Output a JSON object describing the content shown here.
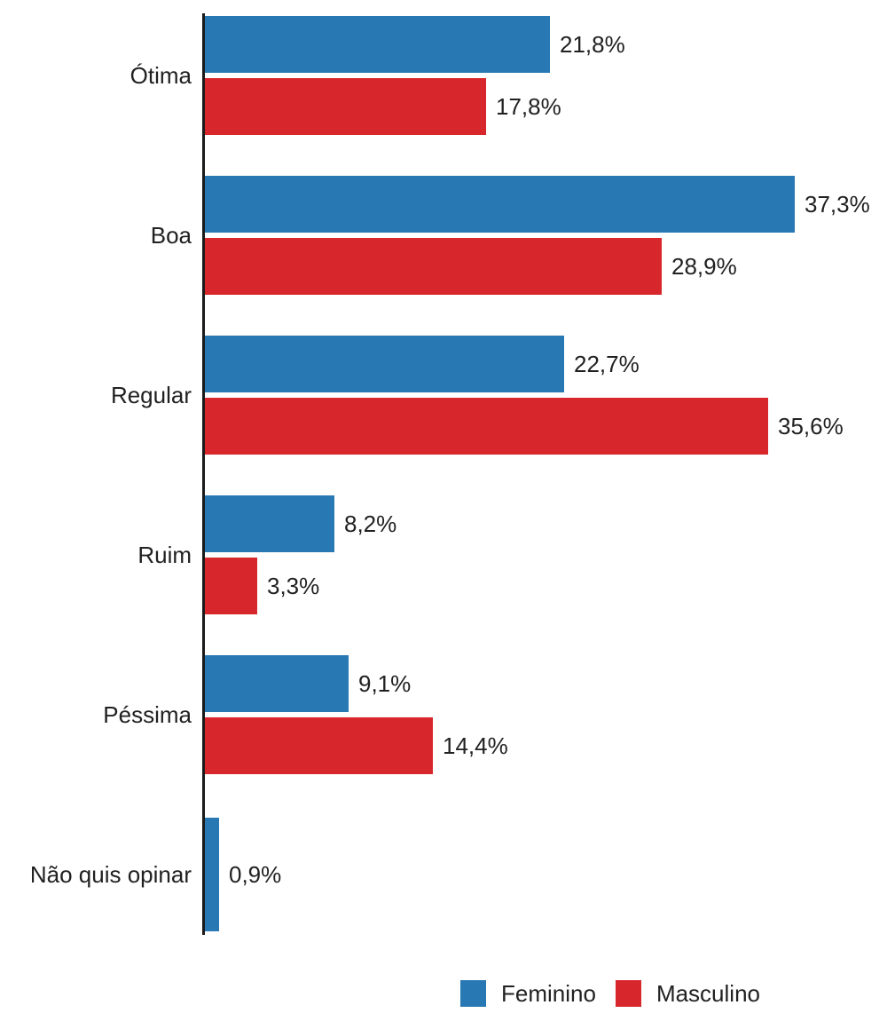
{
  "chart_data": {
    "type": "bar",
    "orientation": "horizontal",
    "categories": [
      "Ótima",
      "Boa",
      "Regular",
      "Ruim",
      "Péssima",
      "Não quis opinar"
    ],
    "series": [
      {
        "name": "Feminino",
        "color": "#2878b4",
        "values": [
          21.8,
          37.3,
          22.7,
          8.2,
          9.1,
          0.9
        ],
        "labels": [
          "21,8%",
          "37,3%",
          "22,7%",
          "8,2%",
          "9,1%",
          "0,9%"
        ]
      },
      {
        "name": "Masculino",
        "color": "#d7262c",
        "values": [
          17.8,
          28.9,
          35.6,
          3.3,
          14.4,
          null
        ],
        "labels": [
          "17,8%",
          "28,9%",
          "35,6%",
          "3,3%",
          "14,4%",
          null
        ]
      }
    ],
    "xlim": [
      0,
      40
    ],
    "value_format": "percent-comma-decimal",
    "grid": false,
    "legend_position": "bottom",
    "axis_color": "#1a1a1a",
    "text_color": "#212121"
  }
}
